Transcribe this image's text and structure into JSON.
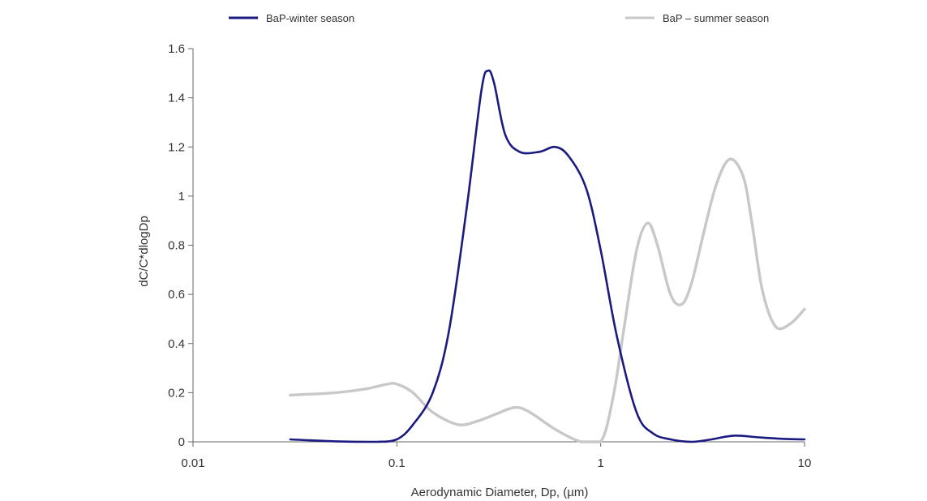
{
  "chart_data": {
    "type": "line",
    "title": "",
    "xlabel": "Aerodynamic Diameter, Dp, (µm)",
    "ylabel": "dC/C*dlogDp",
    "x_scale": "log",
    "xlim": [
      0.01,
      10
    ],
    "ylim": [
      0,
      1.6
    ],
    "x_ticks": [
      0.01,
      0.1,
      1,
      10
    ],
    "x_tick_labels": [
      "0.01",
      "0.1",
      "1",
      "10"
    ],
    "y_ticks": [
      0,
      0.2,
      0.4,
      0.6,
      0.8,
      1,
      1.2,
      1.4,
      1.6
    ],
    "y_tick_labels": [
      "0",
      "0.2",
      "0.4",
      "0.6",
      "0.8",
      "1",
      "1.2",
      "1.4",
      "1.6"
    ],
    "grid": false,
    "legend_position": "top",
    "series": [
      {
        "name": "BaP-winter season",
        "color": "#1a1a80",
        "x": [
          0.03,
          0.05,
          0.08,
          0.1,
          0.12,
          0.15,
          0.18,
          0.22,
          0.26,
          0.28,
          0.3,
          0.34,
          0.4,
          0.5,
          0.6,
          0.7,
          0.85,
          1.0,
          1.2,
          1.5,
          1.8,
          2.2,
          2.8,
          3.5,
          4.5,
          6,
          8,
          10
        ],
        "y": [
          0.01,
          0.002,
          0.0,
          0.01,
          0.07,
          0.2,
          0.45,
          0.95,
          1.43,
          1.51,
          1.46,
          1.25,
          1.18,
          1.18,
          1.2,
          1.16,
          1.03,
          0.78,
          0.43,
          0.12,
          0.035,
          0.01,
          0.0,
          0.01,
          0.025,
          0.018,
          0.012,
          0.01
        ]
      },
      {
        "name": "BaP – summer season",
        "color": "#c8c8c8",
        "x": [
          0.03,
          0.05,
          0.07,
          0.09,
          0.1,
          0.12,
          0.15,
          0.2,
          0.25,
          0.3,
          0.38,
          0.45,
          0.6,
          0.8,
          1.0,
          1.15,
          1.3,
          1.5,
          1.7,
          1.9,
          2.2,
          2.5,
          2.8,
          3.2,
          3.7,
          4.3,
          5.0,
          5.5,
          6.2,
          7.2,
          8.5,
          10
        ],
        "y": [
          0.19,
          0.2,
          0.215,
          0.235,
          0.235,
          0.2,
          0.12,
          0.07,
          0.085,
          0.11,
          0.14,
          0.12,
          0.05,
          0.0,
          0.0,
          0.18,
          0.46,
          0.78,
          0.89,
          0.8,
          0.6,
          0.56,
          0.65,
          0.85,
          1.05,
          1.15,
          1.08,
          0.9,
          0.62,
          0.47,
          0.48,
          0.54
        ]
      }
    ]
  }
}
